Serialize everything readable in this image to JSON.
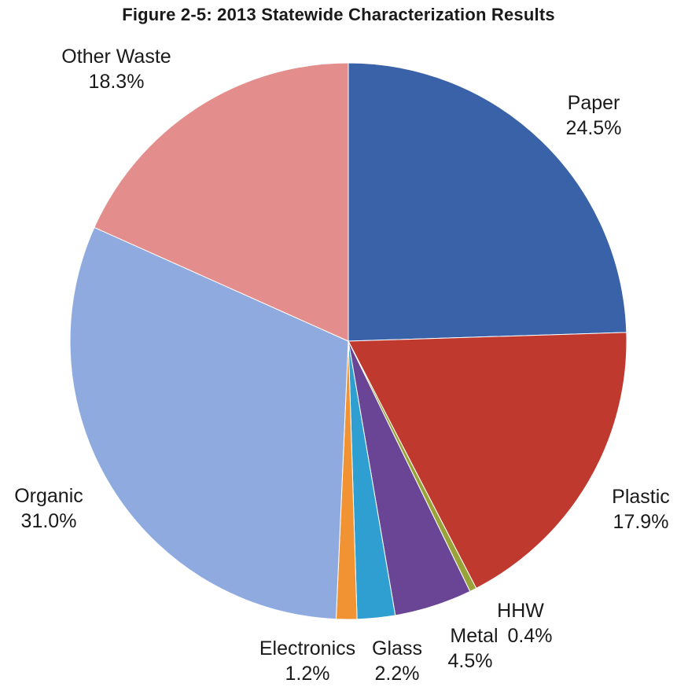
{
  "chart_data": {
    "type": "pie",
    "title": "Figure 2-5: 2013 Statewide Characterization Results",
    "start_angle_deg": 0,
    "direction": "clockwise",
    "slices": [
      {
        "name": "Paper",
        "value": 24.5,
        "label": "24.5%",
        "color": "#3a62a8"
      },
      {
        "name": "Plastic",
        "value": 17.9,
        "label": "17.9%",
        "color": "#c0392e"
      },
      {
        "name": "HHW",
        "value": 0.4,
        "label": "0.4%",
        "color": "#9aa23a"
      },
      {
        "name": "Metal",
        "value": 4.5,
        "label": "4.5%",
        "color": "#6a4596"
      },
      {
        "name": "Glass",
        "value": 2.2,
        "label": "2.2%",
        "color": "#2e9fd0"
      },
      {
        "name": "Electronics",
        "value": 1.2,
        "label": "1.2%",
        "color": "#f29333"
      },
      {
        "name": "Organic",
        "value": 31.0,
        "label": "31.0%",
        "color": "#8eaadf"
      },
      {
        "name": "Other Waste",
        "value": 18.3,
        "label": "18.3%",
        "color": "#e38e8c"
      }
    ]
  }
}
